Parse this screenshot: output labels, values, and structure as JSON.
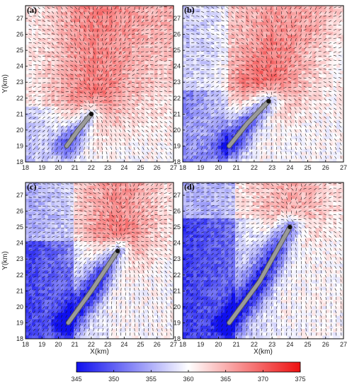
{
  "chart_data": {
    "type": "heatmap",
    "panels": [
      {
        "label": "(a)",
        "track": [
          [
            20.5,
            19.0
          ],
          [
            21.2,
            20.0
          ],
          [
            22.0,
            21.0
          ]
        ],
        "vortex_center": [
          22.0,
          21.0
        ],
        "red_scale": 0.9,
        "blue_scale": 0.8
      },
      {
        "label": "(b)",
        "track": [
          [
            20.6,
            19.0
          ],
          [
            21.6,
            20.4
          ],
          [
            22.8,
            21.8
          ]
        ],
        "vortex_center": [
          22.8,
          21.9
        ],
        "red_scale": 0.8,
        "blue_scale": 0.9
      },
      {
        "label": "(c)",
        "track": [
          [
            20.6,
            19.0
          ],
          [
            22.0,
            21.0
          ],
          [
            23.6,
            23.5
          ]
        ],
        "vortex_center": [
          23.6,
          23.6
        ],
        "red_scale": 0.9,
        "blue_scale": 1.0
      },
      {
        "label": "(d)",
        "track": [
          [
            20.6,
            19.0
          ],
          [
            22.3,
            21.6
          ],
          [
            24.0,
            25.0
          ]
        ],
        "vortex_center": [
          24.0,
          25.0
        ],
        "red_scale": 0.6,
        "blue_scale": 1.0
      }
    ],
    "xlabel": "X(km)",
    "ylabel": "Y(km)",
    "xlim": [
      18,
      27
    ],
    "ylim": [
      18,
      27.8
    ],
    "x_ticks": [
      "18",
      "19",
      "20",
      "21",
      "22",
      "23",
      "24",
      "25",
      "26",
      "27"
    ],
    "y_ticks": [
      "18",
      "19",
      "20",
      "21",
      "22",
      "23",
      "24",
      "25",
      "26",
      "27"
    ],
    "colorbar": {
      "min": 345,
      "max": 375,
      "ticks": [
        "345",
        "350",
        "355",
        "360",
        "365",
        "370",
        "375"
      ],
      "colors": [
        "#1010ee",
        "#ffffff",
        "#ee1010"
      ]
    }
  }
}
